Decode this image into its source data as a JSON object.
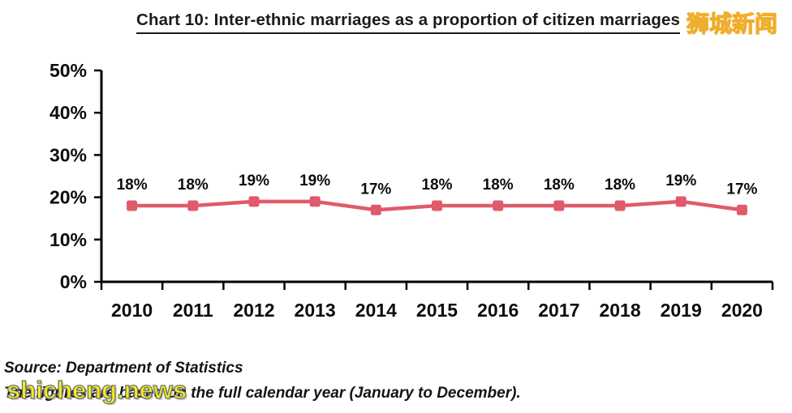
{
  "page": {
    "title": "Chart 10: Inter-ethnic marriages as a proportion of citizen marriages"
  },
  "watermarks": {
    "top": "狮城新闻",
    "bottom": "shicheng.news"
  },
  "source": {
    "line1": "Source: Department of Statistics",
    "line2": "The figures are based on the full calendar year (January to December)."
  },
  "colors": {
    "line": "#e05a6a",
    "axis": "#000000",
    "label_text": "#0d0d0d",
    "watermark_yellow": "#f6ee18",
    "watermark_top_stroke": "#efae2e",
    "watermark_bottom_stroke": "#6f6f64"
  },
  "chart_data": {
    "type": "line",
    "title": "Chart 10: Inter-ethnic marriages as a proportion of citizen marriages",
    "categories": [
      "2010",
      "2011",
      "2012",
      "2013",
      "2014",
      "2015",
      "2016",
      "2017",
      "2018",
      "2019",
      "2020"
    ],
    "values": [
      18,
      18,
      19,
      19,
      17,
      18,
      18,
      18,
      18,
      19,
      17
    ],
    "data_labels": [
      "18%",
      "18%",
      "19%",
      "19%",
      "17%",
      "18%",
      "18%",
      "18%",
      "18%",
      "19%",
      "17%"
    ],
    "xlabel": "",
    "ylabel": "",
    "ylim": [
      0,
      50
    ],
    "y_ticks": [
      0,
      10,
      20,
      30,
      40,
      50
    ],
    "y_tick_labels": [
      "0%",
      "10%",
      "20%",
      "30%",
      "40%",
      "50%"
    ],
    "grid": false,
    "legend": "none",
    "marker": "square",
    "line_color": "#e05a6a"
  }
}
